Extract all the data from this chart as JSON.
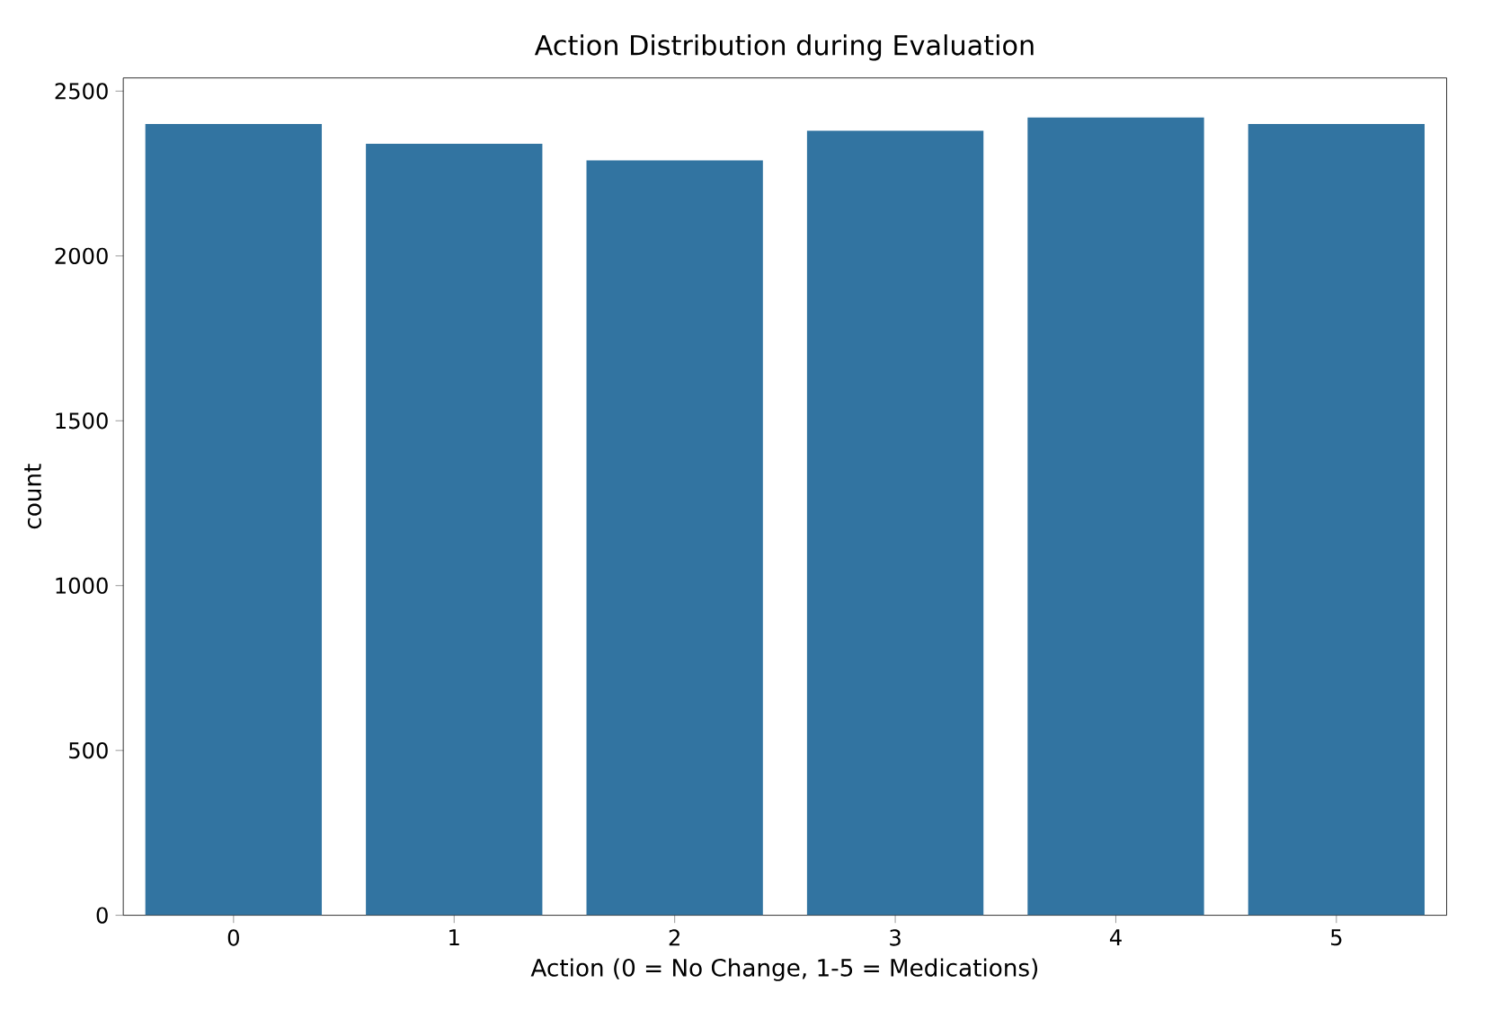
{
  "chart_data": {
    "type": "bar",
    "title": "Action Distribution during Evaluation",
    "xlabel": "Action (0 = No Change, 1-5 = Medications)",
    "ylabel": "count",
    "categories": [
      "0",
      "1",
      "2",
      "3",
      "4",
      "5"
    ],
    "values": [
      2400,
      2340,
      2290,
      2380,
      2420,
      2400
    ],
    "color": "#3274a1",
    "ylim": [
      0,
      2540
    ],
    "yticks": [
      0,
      500,
      1000,
      1500,
      2000,
      2500
    ],
    "grid": false
  }
}
